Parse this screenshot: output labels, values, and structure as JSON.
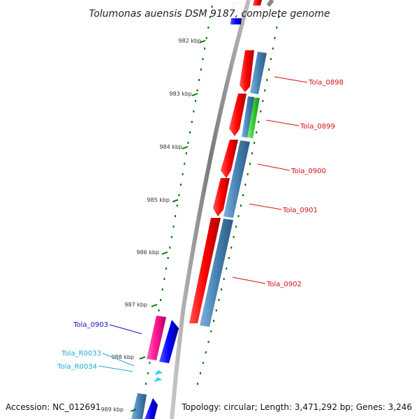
{
  "title": "Tolumonas auensis DSM 9187, complete genome",
  "footer": {
    "accession": "Accession: NC_012691",
    "summary": "Topology: circular; Length: 3,471,292 bp; Genes: 3,246"
  },
  "ticks": [
    "982 kbp",
    "983 kbp",
    "984 kbp",
    "985 kbp",
    "986 kbp",
    "987 kbp",
    "988 kbp",
    "989 kbp"
  ],
  "genes": [
    {
      "label": "Tola_0898",
      "color": "#d01010"
    },
    {
      "label": "Tola_0899",
      "color": "#d01010"
    },
    {
      "label": "Tola_0900",
      "color": "#d01010"
    },
    {
      "label": "Tola_0901",
      "color": "#d01010"
    },
    {
      "label": "Tola_0902",
      "color": "#d01010"
    },
    {
      "label": "Tola_0903",
      "color": "#1010c0"
    },
    {
      "label": "Tola_R0033",
      "color": "#20a8d8"
    },
    {
      "label": "Tola_R0034",
      "color": "#20a8d8"
    }
  ],
  "colors": {
    "cds_forward": "#ff0000",
    "cds_reverse": "#4682b4",
    "highlight_green": "#33cc33",
    "blue_cds": "#0000ff",
    "pink_cds": "#ff1493",
    "rna": "#33ccff",
    "backbone": "#8a8a8a",
    "tick_green": "#007700"
  }
}
